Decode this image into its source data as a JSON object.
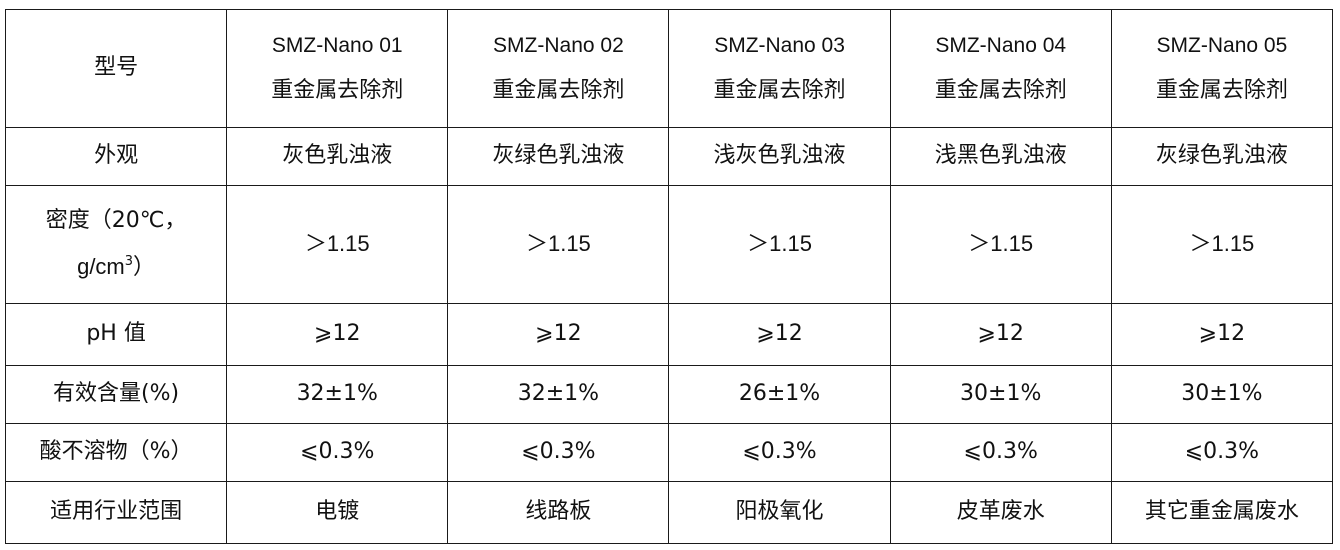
{
  "table": {
    "header_label": "型号",
    "models": [
      {
        "code": "SMZ-Nano 01",
        "name": "重金属去除剂"
      },
      {
        "code": "SMZ-Nano 02",
        "name": "重金属去除剂"
      },
      {
        "code": "SMZ-Nano 03",
        "name": "重金属去除剂"
      },
      {
        "code": "SMZ-Nano 04",
        "name": "重金属去除剂"
      },
      {
        "code": "SMZ-Nano 05",
        "name": "重金属去除剂"
      }
    ],
    "rows": {
      "appearance": {
        "label": "外观",
        "values": [
          "灰色乳浊液",
          "灰绿色乳浊液",
          "浅灰色乳浊液",
          "浅黑色乳浊液",
          "灰绿色乳浊液"
        ]
      },
      "density": {
        "label_line1": "密度（20℃，",
        "label_line2_prefix": "g/cm",
        "label_line2_sup": "3",
        "label_line2_suffix": "）",
        "values": [
          "＞1.15",
          "＞1.15",
          "＞1.15",
          "＞1.15",
          "＞1.15"
        ]
      },
      "ph": {
        "label": "pH 值",
        "values": [
          "⩾12",
          "⩾12",
          "⩾12",
          "⩾12",
          "⩾12"
        ]
      },
      "effective_content": {
        "label": "有效含量(%)",
        "values": [
          "32±1%",
          "32±1%",
          "26±1%",
          "30±1%",
          "30±1%"
        ]
      },
      "acid_insoluble": {
        "label": "酸不溶物（%）",
        "values": [
          "⩽0.3%",
          "⩽0.3%",
          "⩽0.3%",
          "⩽0.3%",
          "⩽0.3%"
        ]
      },
      "application": {
        "label": "适用行业范围",
        "values": [
          "电镀",
          "线路板",
          "阳极氧化",
          "皮革废水",
          "其它重金属废水"
        ]
      }
    }
  }
}
